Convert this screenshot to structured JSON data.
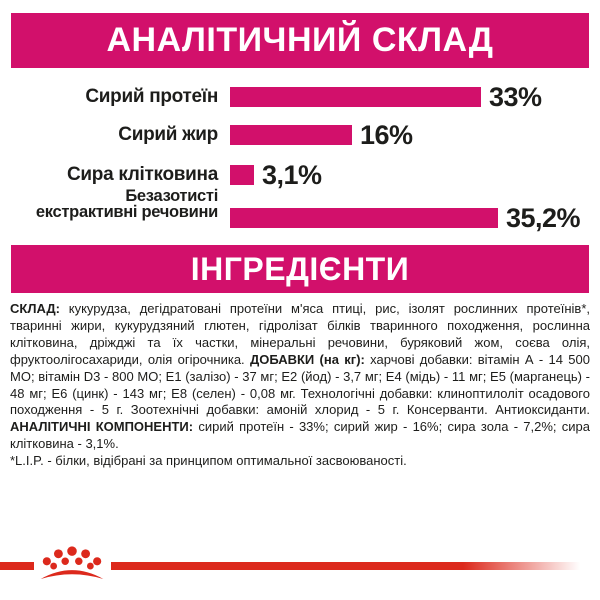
{
  "colors": {
    "magenta": "#D2106B",
    "red": "#DC291C",
    "text": "#1d1d1b",
    "background": "#ffffff"
  },
  "analytical": {
    "header": "АНАЛІТИЧНИЙ СКЛАД"
  },
  "chart_data": {
    "type": "bar",
    "orientation": "horizontal",
    "title": "АНАЛІТИЧНИЙ СКЛАД",
    "unit": "%",
    "categories": [
      "Сирий протеїн",
      "Сирий жир",
      "Сира клітковина",
      "Безазотисті екстрактивні речовини"
    ],
    "label_lines": [
      [
        "Сирий протеїн"
      ],
      [
        "Сирий жир"
      ],
      [
        "Сира клітковина"
      ],
      [
        "Безазотисті",
        "екстрактивні речовини"
      ]
    ],
    "values": [
      33,
      16,
      3.1,
      35.2
    ],
    "value_labels": [
      "33%",
      "16%",
      "3,1%",
      "35,2%"
    ],
    "bar_color": "#D2106B",
    "xlim": [
      0,
      36
    ],
    "grid": false,
    "legend": false
  },
  "ingredients": {
    "header": "ІНГРЕДІЄНТИ",
    "segments": [
      {
        "bold": true,
        "text": "СКЛАД:"
      },
      {
        "bold": false,
        "text": " кукурудза, дегідратовані протеїни м'яса птиці, рис, ізолят рослинних протеїнів*, тваринні жири, кукурудзяний глютен, гідролізат білків тваринного походження, рослинна клітковина, дріжджі та їх частки, мінеральні речовини, буряковий жом, соєва олія, фруктоолігосахариди, олія огірочника. "
      },
      {
        "bold": true,
        "text": "ДОБАВКИ (на кг):"
      },
      {
        "bold": false,
        "text": " харчові добавки: вітамін А - 14 500 МО; вітамін D3 - 800 МО; Е1 (залізо) - 37 мг; Е2 (йод) - 3,7 мг; Е4 (мідь) - 11 мг; Е5 (марганець) - 48 мг; Е6 (цинк) - 143 мг; Е8 (селен) - 0,08 мг. Технологічні добавки: клиноптилоліт осадового походження - 5 г. Зоотехнічні добавки: амоній хлорид - 5 г. Консерванти. Антиоксиданти. "
      },
      {
        "bold": true,
        "text": "АНАЛІТИЧНІ КОМПОНЕНТИ:"
      },
      {
        "bold": false,
        "text": " сирий протеїн - 33%; сирий жир - 16%; сира зола - 7,2%; сира клітковина - 3,1%."
      }
    ],
    "footnote": "*L.I.P. - білки, відібрані за принципом оптимальної засвоюваності."
  },
  "footer": {
    "brand_mark": "royal-canin-crown-icon"
  }
}
